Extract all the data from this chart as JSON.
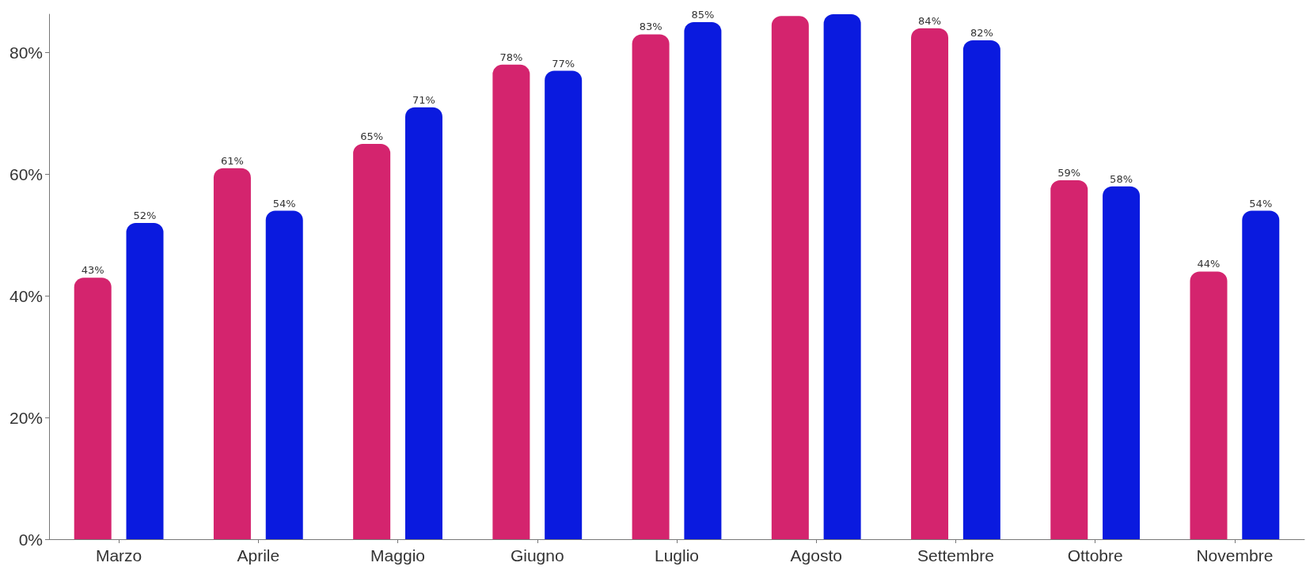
{
  "chart_data": {
    "type": "bar",
    "categories": [
      "Marzo",
      "Aprile",
      "Maggio",
      "Giugno",
      "Luglio",
      "Agosto",
      "Settembre",
      "Ottobre",
      "Novembre"
    ],
    "series": [
      {
        "color": "#d4246e",
        "values": [
          43,
          61,
          65,
          78,
          83,
          86,
          84,
          59,
          44
        ],
        "value_labels": [
          "43%",
          "61%",
          "65%",
          "78%",
          "83%",
          null,
          "84%",
          "59%",
          "44%"
        ]
      },
      {
        "color": "#0a1adf",
        "values": [
          52,
          54,
          71,
          77,
          85,
          86.3,
          82,
          58,
          54
        ],
        "value_labels": [
          "52%",
          "54%",
          "71%",
          "77%",
          "85%",
          null,
          "82%",
          "58%",
          "54%"
        ]
      }
    ],
    "ylim": [
      0,
      86.3
    ],
    "yticks": [
      {
        "value": 0,
        "label": "0%"
      },
      {
        "value": 20,
        "label": "20%"
      },
      {
        "value": 40,
        "label": "40%"
      },
      {
        "value": 60,
        "label": "60%"
      },
      {
        "value": 80,
        "label": "80%"
      }
    ],
    "grid": false
  }
}
